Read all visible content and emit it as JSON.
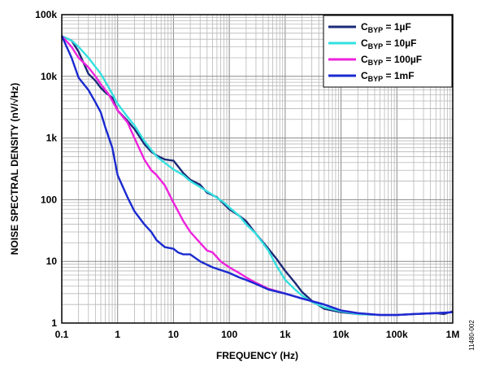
{
  "chart_data": {
    "type": "line",
    "xlabel": "FREQUENCY (Hz)",
    "ylabel": "NOISE SPECTRAL DENSITY (nV/√Hz)",
    "xscale": "log",
    "yscale": "log",
    "xlim": [
      0.1,
      1000000
    ],
    "ylim": [
      1,
      100000
    ],
    "x_ticks": [
      "0.1",
      "1",
      "10",
      "100",
      "1k",
      "10k",
      "100k",
      "1M"
    ],
    "y_ticks": [
      "1",
      "10",
      "100",
      "1k",
      "10k",
      "100k"
    ],
    "grid": true,
    "legend_position": "top-right",
    "figure_code": "11480-002",
    "series": [
      {
        "name_main": "C",
        "name_sub": "BYP",
        "name_rest": " = 1µF",
        "color": "#1c2a78",
        "points": [
          [
            0.1,
            45000
          ],
          [
            0.15,
            38000
          ],
          [
            0.2,
            25000
          ],
          [
            0.3,
            11000
          ],
          [
            0.4,
            8500
          ],
          [
            0.5,
            6500
          ],
          [
            0.6,
            5500
          ],
          [
            0.8,
            4500
          ],
          [
            1,
            2800
          ],
          [
            1.5,
            1900
          ],
          [
            2,
            1400
          ],
          [
            3,
            800
          ],
          [
            4,
            600
          ],
          [
            5,
            520
          ],
          [
            7,
            450
          ],
          [
            10,
            430
          ],
          [
            12,
            350
          ],
          [
            15,
            270
          ],
          [
            20,
            210
          ],
          [
            30,
            175
          ],
          [
            40,
            130
          ],
          [
            60,
            110
          ],
          [
            100,
            70
          ],
          [
            150,
            55
          ],
          [
            200,
            45
          ],
          [
            300,
            28
          ],
          [
            500,
            16
          ],
          [
            700,
            11
          ],
          [
            1000,
            7
          ],
          [
            1500,
            4.5
          ],
          [
            2000,
            3.2
          ],
          [
            3000,
            2.3
          ],
          [
            5000,
            1.7
          ],
          [
            10000,
            1.5
          ],
          [
            20000,
            1.4
          ],
          [
            50000,
            1.35
          ],
          [
            100000,
            1.35
          ],
          [
            200000,
            1.4
          ],
          [
            500000,
            1.45
          ],
          [
            700000,
            1.4
          ],
          [
            1000000,
            1.55
          ]
        ]
      },
      {
        "name_main": "C",
        "name_sub": "BYP",
        "name_rest": " = 10µF",
        "color": "#33e0e0",
        "points": [
          [
            0.1,
            45000
          ],
          [
            0.15,
            38000
          ],
          [
            0.2,
            30000
          ],
          [
            0.3,
            20000
          ],
          [
            0.5,
            11000
          ],
          [
            0.7,
            6500
          ],
          [
            1,
            3600
          ],
          [
            1.5,
            2200
          ],
          [
            2,
            1600
          ],
          [
            3,
            900
          ],
          [
            5,
            500
          ],
          [
            10,
            310
          ],
          [
            15,
            250
          ],
          [
            20,
            200
          ],
          [
            30,
            160
          ],
          [
            50,
            120
          ],
          [
            80,
            90
          ],
          [
            100,
            75
          ],
          [
            150,
            55
          ],
          [
            200,
            40
          ],
          [
            300,
            28
          ],
          [
            500,
            15
          ],
          [
            700,
            8.5
          ],
          [
            1000,
            5
          ],
          [
            1500,
            3.5
          ],
          [
            2000,
            2.8
          ],
          [
            3000,
            2.2
          ],
          [
            5000,
            1.8
          ],
          [
            10000,
            1.55
          ],
          [
            20000,
            1.4
          ],
          [
            50000,
            1.35
          ],
          [
            100000,
            1.35
          ],
          [
            200000,
            1.4
          ],
          [
            500000,
            1.45
          ],
          [
            1000000,
            1.5
          ]
        ]
      },
      {
        "name_main": "C",
        "name_sub": "BYP",
        "name_rest": " = 100µF",
        "color": "#ee22dd",
        "points": [
          [
            0.1,
            45000
          ],
          [
            0.15,
            30000
          ],
          [
            0.2,
            20000
          ],
          [
            0.3,
            14000
          ],
          [
            0.4,
            10000
          ],
          [
            0.5,
            7500
          ],
          [
            0.7,
            5000
          ],
          [
            1,
            2800
          ],
          [
            1.5,
            1800
          ],
          [
            2,
            1000
          ],
          [
            3,
            450
          ],
          [
            4,
            300
          ],
          [
            5,
            250
          ],
          [
            7,
            170
          ],
          [
            10,
            90
          ],
          [
            15,
            45
          ],
          [
            20,
            30
          ],
          [
            30,
            20
          ],
          [
            40,
            15
          ],
          [
            50,
            14
          ],
          [
            70,
            10
          ],
          [
            100,
            8
          ],
          [
            150,
            6.5
          ],
          [
            200,
            5.5
          ],
          [
            300,
            4.5
          ],
          [
            500,
            3.6
          ],
          [
            1000,
            3
          ],
          [
            2000,
            2.5
          ],
          [
            5000,
            2
          ],
          [
            10000,
            1.6
          ],
          [
            20000,
            1.45
          ],
          [
            50000,
            1.35
          ],
          [
            100000,
            1.35
          ],
          [
            200000,
            1.4
          ],
          [
            500000,
            1.45
          ],
          [
            1000000,
            1.5
          ]
        ]
      },
      {
        "name_main": "C",
        "name_sub": "BYP",
        "name_rest": " = 1mF",
        "color": "#1a2ad0",
        "points": [
          [
            0.1,
            45000
          ],
          [
            0.15,
            20000
          ],
          [
            0.2,
            9500
          ],
          [
            0.3,
            6000
          ],
          [
            0.4,
            3800
          ],
          [
            0.5,
            2600
          ],
          [
            0.6,
            1500
          ],
          [
            0.8,
            700
          ],
          [
            1,
            250
          ],
          [
            1.5,
            110
          ],
          [
            2,
            65
          ],
          [
            3,
            40
          ],
          [
            4,
            30
          ],
          [
            5,
            22
          ],
          [
            7,
            17
          ],
          [
            10,
            16
          ],
          [
            12,
            14
          ],
          [
            15,
            13
          ],
          [
            20,
            13
          ],
          [
            30,
            10
          ],
          [
            50,
            8
          ],
          [
            100,
            6.5
          ],
          [
            150,
            5.5
          ],
          [
            200,
            5
          ],
          [
            300,
            4.3
          ],
          [
            500,
            3.5
          ],
          [
            1000,
            3
          ],
          [
            2000,
            2.5
          ],
          [
            5000,
            2
          ],
          [
            10000,
            1.6
          ],
          [
            20000,
            1.45
          ],
          [
            50000,
            1.35
          ],
          [
            100000,
            1.35
          ],
          [
            200000,
            1.4
          ],
          [
            500000,
            1.45
          ],
          [
            1000000,
            1.5
          ]
        ]
      }
    ]
  }
}
